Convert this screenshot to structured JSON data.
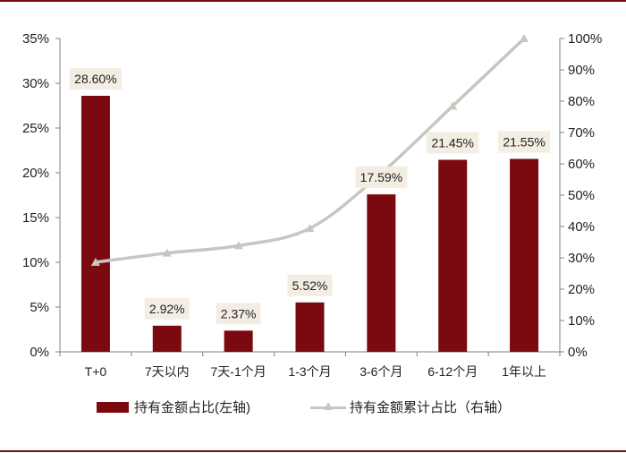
{
  "chart_data": {
    "type": "bar",
    "categories": [
      "T+0",
      "7天以内",
      "7天-1个月",
      "1-3个月",
      "3-6个月",
      "6-12个月",
      "1年以上"
    ],
    "series": [
      {
        "name": "持有金额占比(左轴)",
        "type": "bar",
        "axis": "left",
        "values": [
          28.6,
          2.92,
          2.37,
          5.52,
          17.59,
          21.45,
          21.55
        ],
        "data_labels": [
          "28.60%",
          "2.92%",
          "2.37%",
          "5.52%",
          "17.59%",
          "21.45%",
          "21.55%"
        ]
      },
      {
        "name": "持有金额累计占比（右轴）",
        "type": "line",
        "axis": "right",
        "marker": "triangle",
        "values": [
          28.6,
          31.52,
          33.89,
          39.41,
          57.0,
          78.45,
          100.0
        ]
      }
    ],
    "left_axis": {
      "range": [
        0,
        35
      ],
      "ticks": [
        0,
        5,
        10,
        15,
        20,
        25,
        30,
        35
      ],
      "tick_labels": [
        "0%",
        "5%",
        "10%",
        "15%",
        "20%",
        "25%",
        "30%",
        "35%"
      ]
    },
    "right_axis": {
      "range": [
        0,
        100
      ],
      "ticks": [
        0,
        10,
        20,
        30,
        40,
        50,
        60,
        70,
        80,
        90,
        100
      ],
      "tick_labels": [
        "0%",
        "10%",
        "20%",
        "30%",
        "40%",
        "50%",
        "60%",
        "70%",
        "80%",
        "90%",
        "100%"
      ]
    },
    "grid": false,
    "legend_position": "bottom",
    "colors": {
      "bar": "#7a0a10",
      "line": "#c7c7c0",
      "rule": "#7a0a10",
      "label_bg": "#f3ede3"
    }
  }
}
